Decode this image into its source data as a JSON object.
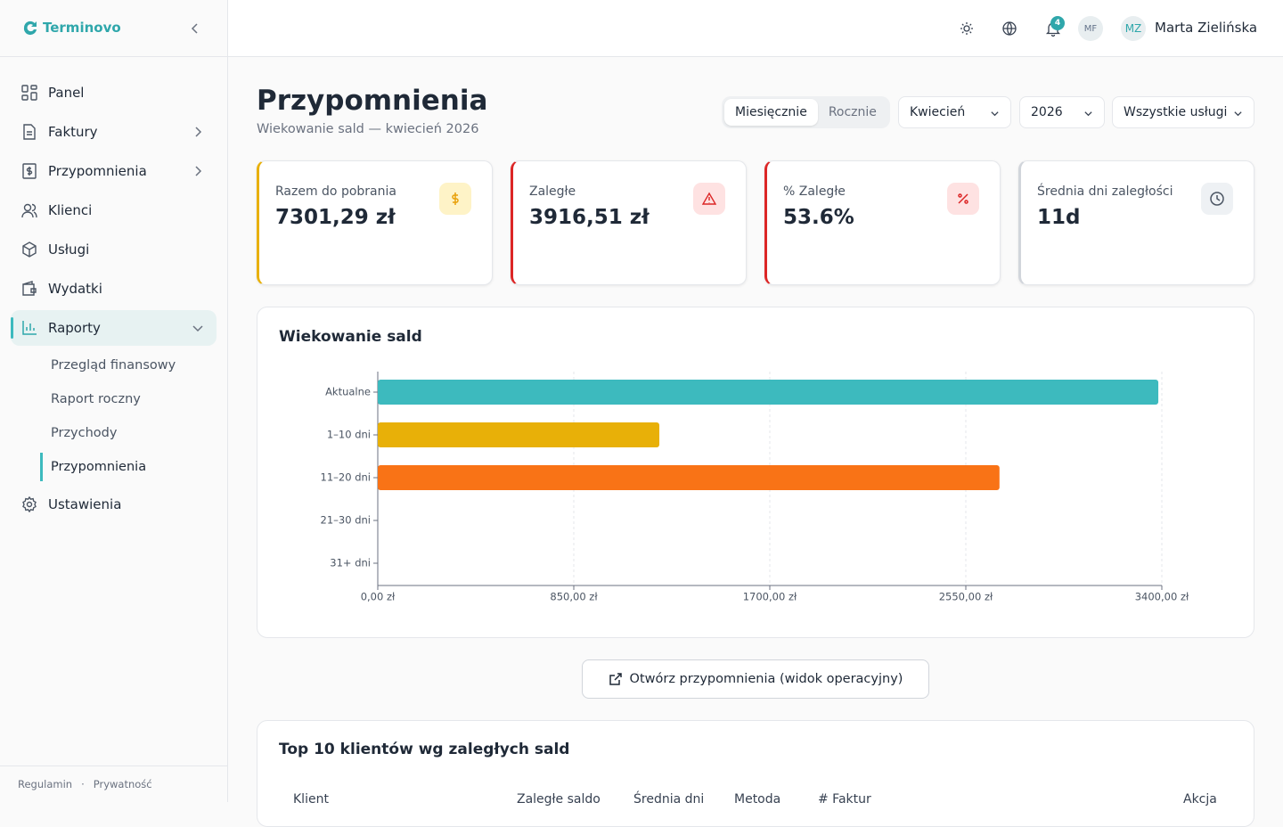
{
  "sidebar": {
    "brand": "Terminovo",
    "nav": [
      "Panel",
      "Faktury",
      "Przypomnienia",
      "Klienci",
      "Usługi",
      "Wydatki",
      "Raporty"
    ],
    "subnav": [
      "Przegląd finansowy",
      "Raport roczny",
      "Przychody",
      "Przypomnienia"
    ],
    "settings": "Ustawienia",
    "footer": [
      "Regulamin",
      "·",
      "Prywatność"
    ]
  },
  "header": {
    "notifications": 4,
    "avatars": [
      "MF",
      "MZ"
    ],
    "user": "Marta Zielińska"
  },
  "page": {
    "title": "Przypomnienia",
    "subtitle": "Wiekowanie sald — kwiecień 2026",
    "toggle": [
      "Miesięcznie",
      "Rocznie"
    ],
    "selects": [
      "Kwiecień",
      "2026",
      "Wszystkie usługi"
    ]
  },
  "cards": [
    {
      "label": "Razem do pobrania",
      "value": "7301,29 zł"
    },
    {
      "label": "Zaległe",
      "value": "3916,51 zł"
    },
    {
      "label": "% Zaległe",
      "value": "53.6%"
    },
    {
      "label": "Średnia dni zaległości",
      "value": "11d"
    }
  ],
  "chart_data": {
    "type": "hbar",
    "title": "Wiekowanie sald",
    "categories": [
      "Aktualne",
      "1–10 dni",
      "11–20 dni",
      "21–30 dni",
      "31+ dni"
    ],
    "values": [
      3384.78,
      1221,
      2696,
      0,
      0
    ],
    "colors": [
      "#3dbabe",
      "#e8b008",
      "#f97316",
      "#8b5cf6",
      "#dc2626"
    ],
    "xlim": [
      0,
      3400
    ],
    "xticks": [
      {
        "value": 0,
        "label": "0,00 zł"
      },
      {
        "value": 850,
        "label": "850,00 zł"
      },
      {
        "value": 1700,
        "label": "1700,00 zł"
      },
      {
        "value": 2550,
        "label": "2550,00 zł"
      },
      {
        "value": 3400,
        "label": "3400,00 zł"
      }
    ],
    "grid": true
  },
  "action_button": "Otwórz przypomnienia (widok operacyjny)",
  "table": {
    "title": "Top 10 klientów wg zaległych sald",
    "columns": [
      "Klient",
      "Zaległe saldo",
      "Średnia dni",
      "Metoda",
      "# Faktur",
      "Akcja"
    ]
  }
}
